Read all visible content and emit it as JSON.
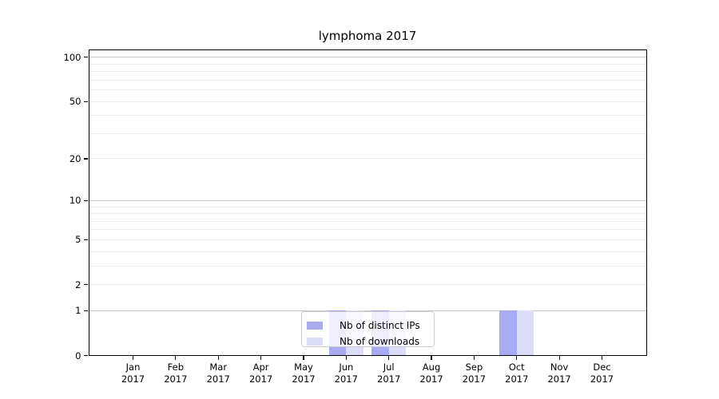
{
  "chart_data": {
    "type": "bar",
    "title": "lymphoma 2017",
    "categories": [
      "Jan",
      "Feb",
      "Mar",
      "Apr",
      "May",
      "Jun",
      "Jul",
      "Aug",
      "Sep",
      "Oct",
      "Nov",
      "Dec"
    ],
    "x_second_line": "2017",
    "series": [
      {
        "name": "Nb of distinct IPs",
        "color": "#a9abf2",
        "values": [
          0,
          0,
          0,
          0,
          0,
          1,
          1,
          0,
          0,
          1,
          0,
          0
        ]
      },
      {
        "name": "Nb of downloads",
        "color": "#dcddf8",
        "values": [
          0,
          0,
          0,
          0,
          0,
          1,
          1,
          0,
          0,
          1,
          0,
          0
        ]
      }
    ],
    "y_scale": "log1p",
    "ylim": [
      0,
      113
    ],
    "y_tick_labels": [
      0,
      1,
      2,
      5,
      10,
      20,
      50,
      100
    ],
    "y_major_gridlines": [
      1,
      10,
      100
    ],
    "y_minor_gridlines": [
      2,
      3,
      4,
      5,
      6,
      7,
      8,
      9,
      20,
      30,
      40,
      50,
      60,
      70,
      80,
      90
    ],
    "grid": true,
    "legend_position": "lower center"
  }
}
